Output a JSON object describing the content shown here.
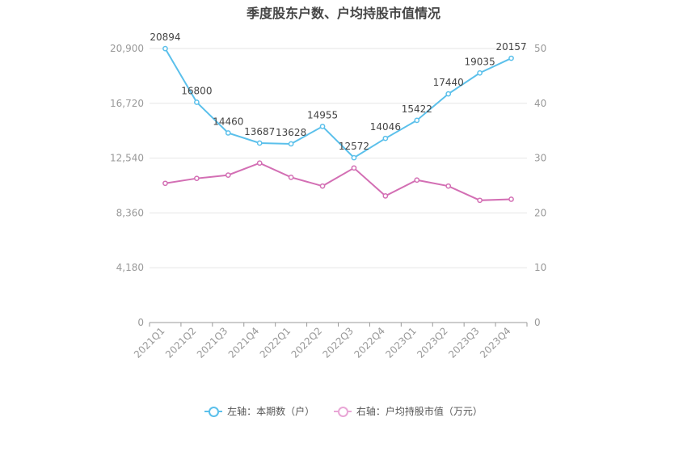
{
  "chart_data": {
    "type": "line",
    "title": "季度股东户数、户均持股市值情况",
    "categories": [
      "2021Q1",
      "2021Q2",
      "2021Q3",
      "2021Q4",
      "2022Q1",
      "2022Q2",
      "2022Q3",
      "2022Q4",
      "2023Q1",
      "2023Q2",
      "2023Q3",
      "2023Q4"
    ],
    "left_axis": {
      "ticks": [
        "0",
        "4,180",
        "8,360",
        "12,540",
        "16,720",
        "20,900"
      ],
      "ylim": [
        0,
        20900
      ]
    },
    "right_axis": {
      "ticks": [
        "0",
        "10",
        "20",
        "30",
        "40",
        "50"
      ],
      "ylim": [
        0,
        50
      ]
    },
    "series": [
      {
        "name": "左轴：本期数（户）",
        "axis": "left",
        "color": "#5bc0eb",
        "values": [
          20894,
          16800,
          14460,
          13687,
          13628,
          14955,
          12572,
          14046,
          15422,
          17440,
          19035,
          20157
        ],
        "labels": [
          "20894",
          "16800",
          "14460",
          "13687",
          "13628",
          "14955",
          "12572",
          "14046",
          "15422",
          "17440",
          "19035",
          "20157"
        ]
      },
      {
        "name": "右轴：户均持股市值（万元）",
        "axis": "right",
        "color": "#d36fb4",
        "values": [
          25.4,
          26.3,
          26.9,
          29.1,
          26.5,
          24.9,
          28.2,
          23.1,
          26.0,
          24.9,
          22.3,
          22.5
        ]
      }
    ],
    "legend_position": "bottom",
    "grid": true
  }
}
